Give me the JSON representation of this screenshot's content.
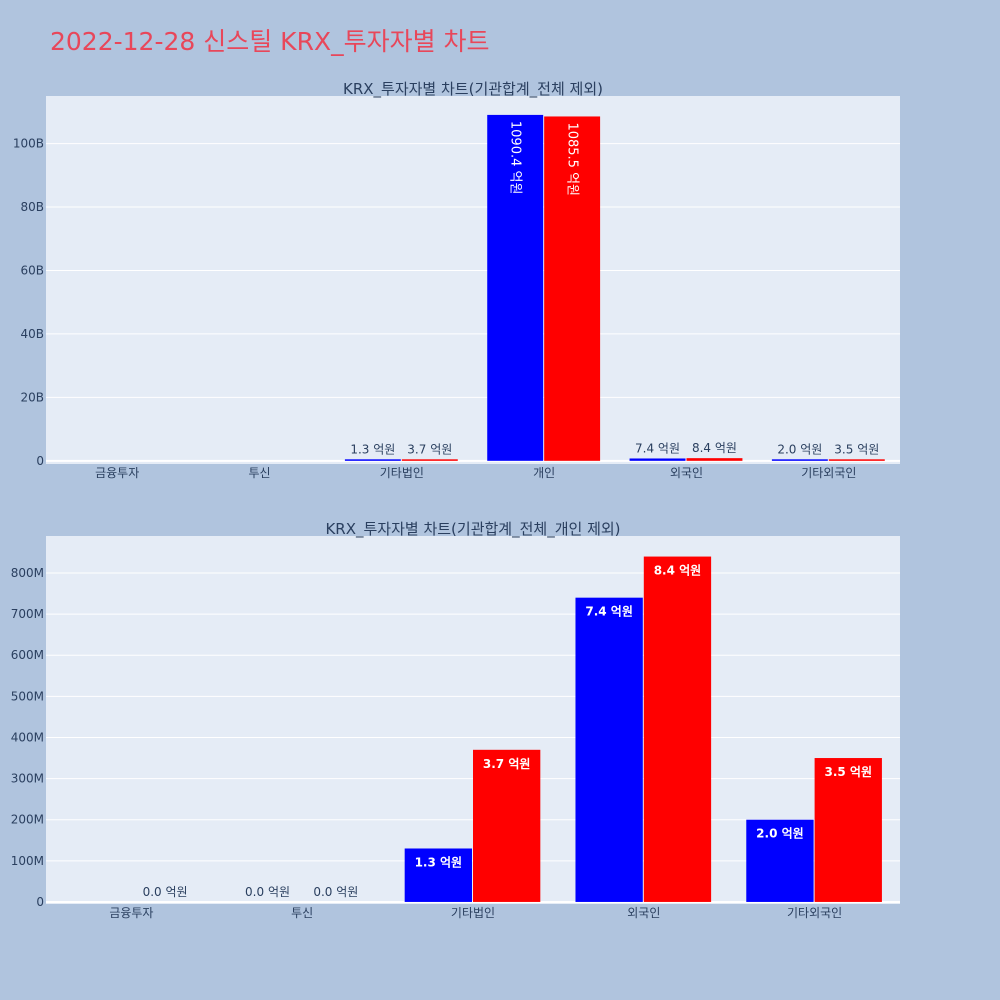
{
  "title": "2022-12-28 신스틸 KRX_투자자별 차트",
  "colors": {
    "background": "#b0c4de",
    "plot_bg": "#e5ecf6",
    "buy": "#0000ff",
    "sell": "#ff0000",
    "title": "#e8475a",
    "text": "#2a3f5f"
  },
  "chart_data": [
    {
      "type": "bar",
      "title": "KRX_투자자별 차트(기관합계_전체 제외)",
      "categories": [
        "금융투자",
        "투신",
        "기타법인",
        "개인",
        "외국인",
        "기타외국인"
      ],
      "series": [
        {
          "values": [
            0,
            0,
            130000000,
            109040000000,
            740000000,
            200000000
          ],
          "labels": [
            "",
            "",
            "1.3 억원",
            "1090.4 억원",
            "7.4 억원",
            "2.0 억원"
          ]
        },
        {
          "values": [
            0,
            0,
            370000000,
            108550000000,
            840000000,
            350000000
          ],
          "labels": [
            "",
            "",
            "3.7 억원",
            "1085.5 억원",
            "8.4 억원",
            "3.5 억원"
          ]
        }
      ],
      "ylim": [
        -1000000000,
        115000000000
      ],
      "yticks": [
        0,
        20000000000,
        40000000000,
        60000000000,
        80000000000,
        100000000000
      ],
      "ytick_labels": [
        "0",
        "20B",
        "40B",
        "60B",
        "80B",
        "100B"
      ],
      "xlabel": "",
      "ylabel": "",
      "grid": true
    },
    {
      "type": "bar",
      "title": "KRX_투자자별 차트(기관합계_전체_개인 제외)",
      "categories": [
        "금융투자",
        "투신",
        "기타법인",
        "외국인",
        "기타외국인"
      ],
      "series": [
        {
          "values": [
            0,
            0,
            130000000,
            740000000,
            200000000
          ],
          "labels": [
            "",
            "0.0 억원",
            "1.3 억원",
            "7.4 억원",
            "2.0 억원"
          ]
        },
        {
          "values": [
            0,
            0,
            370000000,
            840000000,
            350000000
          ],
          "labels": [
            "0.0 억원",
            "0.0 억원",
            "3.7 억원",
            "8.4 억원",
            "3.5 억원"
          ]
        }
      ],
      "ylim": [
        -5000000,
        890000000
      ],
      "yticks": [
        0,
        100000000,
        200000000,
        300000000,
        400000000,
        500000000,
        600000000,
        700000000,
        800000000
      ],
      "ytick_labels": [
        "0",
        "100M",
        "200M",
        "300M",
        "400M",
        "500M",
        "600M",
        "700M",
        "800M"
      ],
      "xlabel": "",
      "ylabel": "",
      "grid": true
    }
  ]
}
